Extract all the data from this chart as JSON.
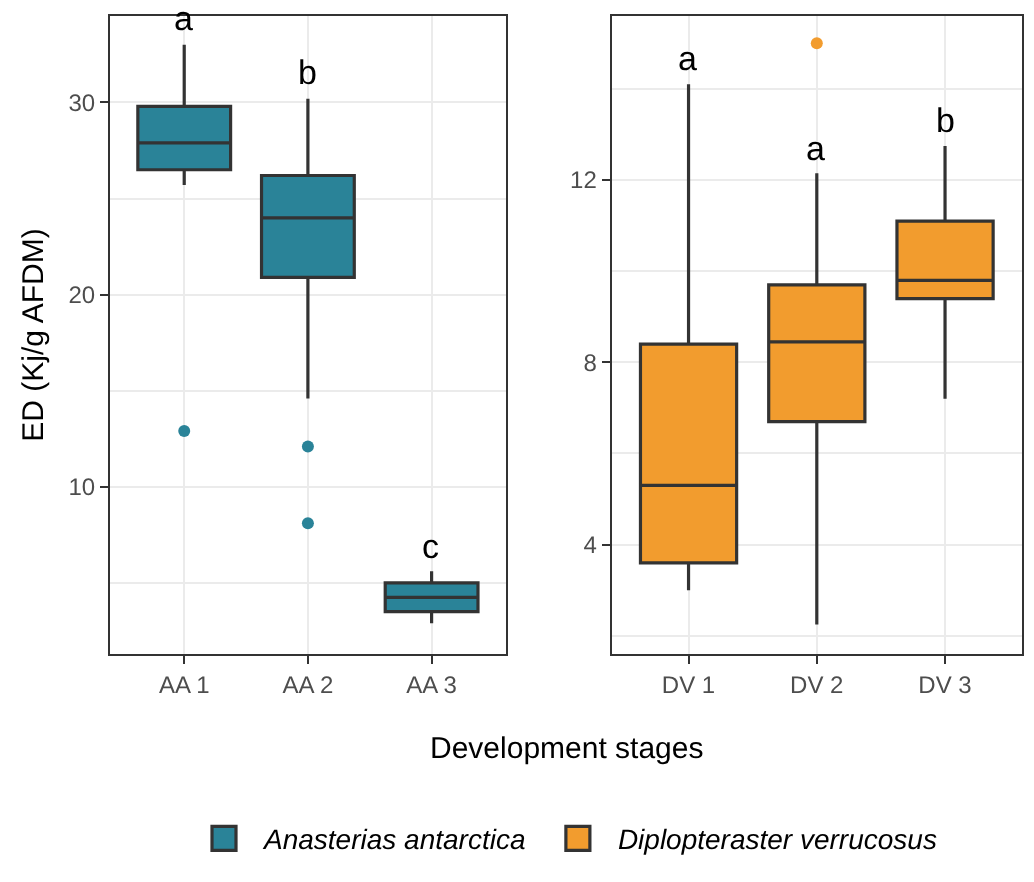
{
  "chart_data": [
    {
      "type": "box",
      "categories": [
        "AA 1",
        "AA 2",
        "AA 3"
      ],
      "xlabel": "Development stages",
      "ylabel": "ED (Kj/g AFDM)",
      "ylim": [
        1.3,
        34.5
      ],
      "yticks": [
        10,
        20,
        30
      ],
      "grid": true,
      "legend": "bottom",
      "series": [
        {
          "name": "Anasterias antarctica",
          "color": "#2a8398",
          "boxes": [
            {
              "low": 25.7,
              "q1": 26.5,
              "median": 27.9,
              "q3": 29.8,
              "high": 33.0,
              "outliers": [
                12.9
              ]
            },
            {
              "low": 14.6,
              "q1": 20.9,
              "median": 24.0,
              "q3": 26.2,
              "high": 30.2,
              "outliers": [
                12.1,
                8.1
              ]
            },
            {
              "low": 2.9,
              "q1": 3.5,
              "median": 4.25,
              "q3": 5.0,
              "high": 5.6
            }
          ]
        }
      ],
      "annotations": [
        "a",
        "b",
        "c"
      ]
    },
    {
      "type": "box",
      "categories": [
        "DV 1",
        "DV 2",
        "DV 3"
      ],
      "ylim": [
        1.6,
        15.6
      ],
      "yticks": [
        4,
        8,
        12
      ],
      "grid": true,
      "legend": "bottom",
      "series": [
        {
          "name": "Diplopteraster verrucosus",
          "color": "#f29c2e",
          "boxes": [
            {
              "low": 3.0,
              "q1": 3.6,
              "median": 5.3,
              "q3": 8.4,
              "high": 14.1
            },
            {
              "low": 2.25,
              "q1": 6.7,
              "median": 8.45,
              "q3": 9.7,
              "high": 12.15,
              "outliers": [
                15.0
              ]
            },
            {
              "low": 7.2,
              "q1": 9.4,
              "median": 9.8,
              "q3": 11.1,
              "high": 12.75
            }
          ]
        }
      ],
      "annotations": [
        "a",
        "a",
        "b"
      ]
    }
  ]
}
